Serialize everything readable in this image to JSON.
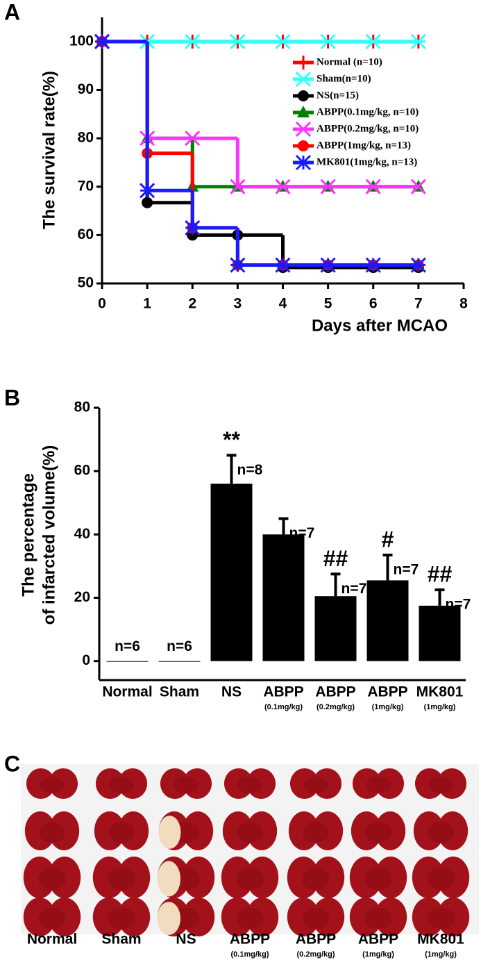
{
  "chart_data": [
    {
      "type": "line",
      "panel_label": "A",
      "drawstyle": "steps-post",
      "xlabel": "Days after MCAO",
      "ylabel": "The survival rate(%)",
      "x": [
        0,
        1,
        2,
        3,
        4,
        5,
        6,
        7
      ],
      "xlim": [
        0,
        8
      ],
      "xticks": [
        0,
        1,
        2,
        3,
        4,
        5,
        6,
        7,
        8
      ],
      "ylim": [
        50,
        105
      ],
      "yticks": [
        50,
        60,
        70,
        80,
        90,
        100
      ],
      "legend": "upper right",
      "series": [
        {
          "name": "Normal (n=10)",
          "color": "#ff0000",
          "marker": "plus",
          "values": [
            100,
            100,
            100,
            100,
            100,
            100,
            100,
            100
          ]
        },
        {
          "name": "Sham(n=10)",
          "color": "#33ffff",
          "marker": "star",
          "values": [
            100,
            100,
            100,
            100,
            100,
            100,
            100,
            100
          ]
        },
        {
          "name": "NS(n=15)",
          "color": "#000000",
          "marker": "circle",
          "values": [
            100,
            66.7,
            60,
            60,
            53.3,
            53.3,
            53.3,
            53.3
          ]
        },
        {
          "name": "ABPP(0.1mg/kg, n=10)",
          "color": "#008000",
          "marker": "triangle",
          "values": [
            100,
            80,
            70,
            70,
            70,
            70,
            70,
            70
          ]
        },
        {
          "name": "ABPP(0.2mg/kg, n=10)",
          "color": "#ff33ff",
          "marker": "x",
          "values": [
            100,
            80,
            80,
            70,
            70,
            70,
            70,
            70
          ]
        },
        {
          "name": "ABPP(1mg/kg, n=13)",
          "color": "#ff0000",
          "marker": "circle",
          "values": [
            100,
            76.9,
            61.5,
            53.8,
            53.8,
            53.8,
            53.8,
            53.8
          ]
        },
        {
          "name": "MK801(1mg/kg, n=13)",
          "color": "#1a1aff",
          "marker": "asterisk",
          "values": [
            100,
            69.2,
            61.5,
            53.8,
            53.8,
            53.8,
            53.8,
            53.8
          ]
        }
      ]
    },
    {
      "type": "bar",
      "panel_label": "B",
      "ylabel": [
        "The percentage",
        "of infarcted volume(%)"
      ],
      "categories": [
        "Normal",
        "Sham",
        "NS",
        "ABPP",
        "ABPP",
        "ABPP",
        "MK801"
      ],
      "sublabels": [
        null,
        null,
        null,
        "(0.1mg/kg)",
        "(0.2mg/kg)",
        "(1mg/kg)",
        "(1mg/kg)"
      ],
      "values": [
        0,
        0,
        56,
        40,
        20.5,
        25.5,
        17.5
      ],
      "errors": [
        0,
        0,
        9,
        5,
        7,
        8,
        5
      ],
      "n_labels": [
        "n=6",
        "n=6",
        "n=8",
        "n=7",
        "n=7",
        "n=7",
        "n=7"
      ],
      "significance": [
        null,
        null,
        "**",
        null,
        "##",
        "#",
        "##"
      ],
      "color": "#000000",
      "ylim": [
        -6,
        80
      ],
      "yticks": [
        0,
        20,
        40,
        60,
        80
      ]
    }
  ],
  "image_panel": {
    "panel_label": "C",
    "columns": [
      {
        "label": "Normal"
      },
      {
        "label": "Sham"
      },
      {
        "label": "NS"
      },
      {
        "label": "ABPP",
        "sublabel": "(0.1mg/kg)"
      },
      {
        "label": "ABPP",
        "sublabel": "(0.2mg/kg)"
      },
      {
        "label": "ABPP",
        "sublabel": "(1mg/kg)"
      },
      {
        "label": "MK801",
        "sublabel": "(1mg/kg)"
      }
    ]
  }
}
